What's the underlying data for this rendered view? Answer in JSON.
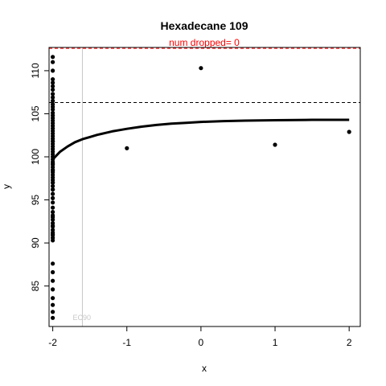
{
  "chart_data": {
    "type": "scatter",
    "title": "Hexadecane 109",
    "subtitle": "num dropped= 0",
    "xlabel": "x",
    "ylabel": "y",
    "xlim": [
      -2.05,
      2.15
    ],
    "ylim": [
      80.3,
      112.7
    ],
    "xticks": [
      -2,
      -1,
      0,
      1,
      2
    ],
    "xtick_labels": [
      "-2",
      "-1",
      "0",
      "1",
      "2"
    ],
    "yticks": [
      85,
      90,
      95,
      100,
      105,
      110
    ],
    "ytick_labels": [
      "85",
      "90",
      "95",
      "100",
      "105",
      "110"
    ],
    "grid": false,
    "legend": "none",
    "ref_lines": {
      "ec90_x": -1.6,
      "ec90_label": "EC90",
      "upper_dashed_y": 112.6,
      "mid_dashed_y": 106.3
    },
    "colors": {
      "points": "#000000",
      "curve": "#000000",
      "subtitle": "#ff0000",
      "upper_dashed": "#ff0000",
      "mid_dashed": "#000000",
      "ec90_line": "#c8c8c8",
      "ec90_label": "#c8c8c8"
    },
    "series": [
      {
        "name": "observations",
        "x": [
          -2,
          -2,
          -2,
          -2,
          -2,
          -2,
          -2,
          -2,
          -2,
          -2,
          -2,
          -2,
          -2,
          -2,
          -2,
          -2,
          -2,
          -2,
          -2,
          -2,
          -2,
          -2,
          -2,
          -2,
          -2,
          -2,
          -2,
          -2,
          -2,
          -2,
          -2,
          -2,
          -2,
          -2,
          -2,
          -2,
          -2,
          -2,
          -2,
          -2,
          -2,
          -2,
          -2,
          -2,
          -2,
          -2,
          -2,
          -2,
          -2,
          -2,
          -2,
          -2,
          -2,
          -2,
          -2,
          -2,
          -2,
          -2,
          -2,
          -2,
          -2,
          -2,
          -2,
          -2,
          -2,
          -2,
          -2,
          -2,
          -2,
          -2,
          -2,
          -2,
          -2,
          -1,
          0,
          1,
          2
        ],
        "y": [
          111.6,
          111.0,
          110.0,
          109.0,
          108.6,
          108.2,
          107.8,
          107.3,
          106.9,
          106.5,
          106.1,
          105.8,
          105.5,
          105.1,
          104.8,
          104.5,
          104.2,
          103.9,
          103.6,
          103.3,
          103.0,
          102.7,
          102.4,
          102.1,
          101.8,
          101.5,
          101.2,
          100.9,
          100.6,
          100.3,
          100.0,
          99.7,
          99.4,
          99.1,
          98.8,
          98.5,
          98.2,
          97.9,
          97.6,
          97.3,
          97.0,
          96.6,
          96.2,
          95.7,
          95.2,
          94.7,
          94.1,
          93.6,
          93.2,
          92.7,
          92.3,
          91.9,
          91.5,
          91.2,
          90.9,
          90.6,
          90.3,
          87.6,
          86.6,
          85.6,
          84.6,
          83.6,
          82.8,
          82.0,
          81.3,
          99.2,
          98.4,
          97.0,
          96.2,
          93.0,
          92.0,
          91.0,
          101.8,
          101.0,
          110.3,
          101.4,
          102.9
        ]
      },
      {
        "name": "fit",
        "x": [
          -2.0,
          -1.9,
          -1.8,
          -1.7,
          -1.6,
          -1.5,
          -1.4,
          -1.3,
          -1.2,
          -1.1,
          -1.0,
          -0.8,
          -0.6,
          -0.4,
          -0.2,
          0.0,
          0.3,
          0.6,
          1.0,
          1.5,
          2.0
        ],
        "y": [
          99.7,
          100.6,
          101.2,
          101.7,
          102.05,
          102.3,
          102.55,
          102.75,
          102.95,
          103.1,
          103.25,
          103.5,
          103.7,
          103.85,
          103.95,
          104.05,
          104.15,
          104.2,
          104.25,
          104.3,
          104.3
        ]
      }
    ]
  }
}
